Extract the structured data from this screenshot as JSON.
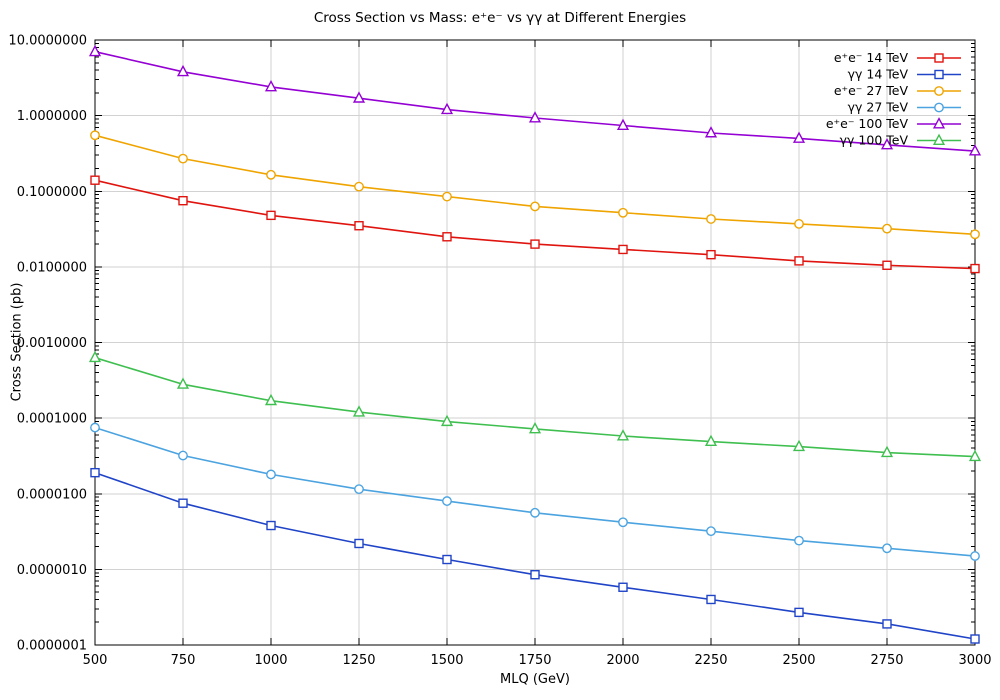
{
  "chart_data": {
    "type": "line",
    "title": "Cross Section vs Mass: e⁺e⁻ vs γγ at Different Energies",
    "xlabel": "MLQ (GeV)",
    "ylabel": "Cross Section (pb)",
    "x": [
      500,
      750,
      1000,
      1250,
      1500,
      1750,
      2000,
      2250,
      2500,
      2750,
      3000
    ],
    "xlim": [
      500,
      3000
    ],
    "x_ticks": [
      500,
      750,
      1000,
      1250,
      1500,
      1750,
      2000,
      2250,
      2500,
      2750,
      3000
    ],
    "y_scale": "log",
    "ylim": [
      1e-07,
      10
    ],
    "y_tick_format": "fixed7",
    "grid": true,
    "legend_position": "top-right-inside",
    "series": [
      {
        "name": "e⁺e⁻ 14 TeV",
        "color": "#e0140f",
        "marker": "square",
        "values": [
          0.14,
          0.075,
          0.048,
          0.035,
          0.025,
          0.02,
          0.017,
          0.0145,
          0.012,
          0.0105,
          0.0095
        ]
      },
      {
        "name": "γγ 14 TeV",
        "color": "#2044c8",
        "marker": "square",
        "values": [
          1.9e-05,
          7.5e-06,
          3.8e-06,
          2.2e-06,
          1.35e-06,
          8.5e-07,
          5.8e-07,
          4e-07,
          2.7e-07,
          1.9e-07,
          1.2e-07
        ]
      },
      {
        "name": "e⁺e⁻ 27 TeV",
        "color": "#efa400",
        "marker": "circle",
        "values": [
          0.55,
          0.27,
          0.165,
          0.115,
          0.085,
          0.063,
          0.052,
          0.043,
          0.037,
          0.032,
          0.027
        ]
      },
      {
        "name": "γγ 27 TeV",
        "color": "#4ba3e0",
        "marker": "circle",
        "values": [
          7.5e-05,
          3.2e-05,
          1.8e-05,
          1.15e-05,
          8e-06,
          5.6e-06,
          4.2e-06,
          3.2e-06,
          2.4e-06,
          1.9e-06,
          1.5e-06
        ]
      },
      {
        "name": "e⁺e⁻ 100 TeV",
        "color": "#9400d3",
        "marker": "triangle",
        "values": [
          7.0,
          3.8,
          2.4,
          1.7,
          1.2,
          0.93,
          0.74,
          0.59,
          0.5,
          0.41,
          0.34
        ]
      },
      {
        "name": "γγ 100 TeV",
        "color": "#3fbf4f",
        "marker": "triangle",
        "values": [
          0.00063,
          0.00028,
          0.00017,
          0.00012,
          9e-05,
          7.2e-05,
          5.8e-05,
          4.9e-05,
          4.2e-05,
          3.5e-05,
          3.1e-05
        ]
      }
    ]
  }
}
